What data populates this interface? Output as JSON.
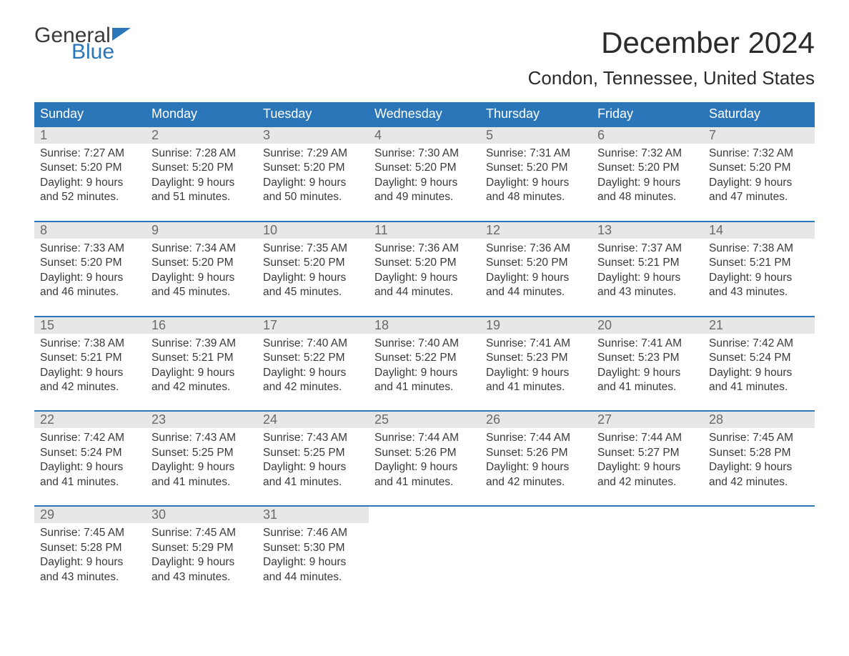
{
  "logo": {
    "word1": "General",
    "word2": "Blue"
  },
  "title": "December 2024",
  "location": "Condon, Tennessee, United States",
  "colors": {
    "brand_blue": "#2a76b9",
    "day_header_bg": "#2a76b9",
    "day_header_text": "#ffffff",
    "daynum_bg": "#e7e7e7",
    "daynum_text": "#6a6a6a",
    "body_text": "#3a3a3a",
    "week_rule": "#2a76b9",
    "page_bg": "#ffffff"
  },
  "day_headers": [
    "Sunday",
    "Monday",
    "Tuesday",
    "Wednesday",
    "Thursday",
    "Friday",
    "Saturday"
  ],
  "weeks": [
    [
      {
        "n": "1",
        "sunrise": "Sunrise: 7:27 AM",
        "sunset": "Sunset: 5:20 PM",
        "dl1": "Daylight: 9 hours",
        "dl2": "and 52 minutes."
      },
      {
        "n": "2",
        "sunrise": "Sunrise: 7:28 AM",
        "sunset": "Sunset: 5:20 PM",
        "dl1": "Daylight: 9 hours",
        "dl2": "and 51 minutes."
      },
      {
        "n": "3",
        "sunrise": "Sunrise: 7:29 AM",
        "sunset": "Sunset: 5:20 PM",
        "dl1": "Daylight: 9 hours",
        "dl2": "and 50 minutes."
      },
      {
        "n": "4",
        "sunrise": "Sunrise: 7:30 AM",
        "sunset": "Sunset: 5:20 PM",
        "dl1": "Daylight: 9 hours",
        "dl2": "and 49 minutes."
      },
      {
        "n": "5",
        "sunrise": "Sunrise: 7:31 AM",
        "sunset": "Sunset: 5:20 PM",
        "dl1": "Daylight: 9 hours",
        "dl2": "and 48 minutes."
      },
      {
        "n": "6",
        "sunrise": "Sunrise: 7:32 AM",
        "sunset": "Sunset: 5:20 PM",
        "dl1": "Daylight: 9 hours",
        "dl2": "and 48 minutes."
      },
      {
        "n": "7",
        "sunrise": "Sunrise: 7:32 AM",
        "sunset": "Sunset: 5:20 PM",
        "dl1": "Daylight: 9 hours",
        "dl2": "and 47 minutes."
      }
    ],
    [
      {
        "n": "8",
        "sunrise": "Sunrise: 7:33 AM",
        "sunset": "Sunset: 5:20 PM",
        "dl1": "Daylight: 9 hours",
        "dl2": "and 46 minutes."
      },
      {
        "n": "9",
        "sunrise": "Sunrise: 7:34 AM",
        "sunset": "Sunset: 5:20 PM",
        "dl1": "Daylight: 9 hours",
        "dl2": "and 45 minutes."
      },
      {
        "n": "10",
        "sunrise": "Sunrise: 7:35 AM",
        "sunset": "Sunset: 5:20 PM",
        "dl1": "Daylight: 9 hours",
        "dl2": "and 45 minutes."
      },
      {
        "n": "11",
        "sunrise": "Sunrise: 7:36 AM",
        "sunset": "Sunset: 5:20 PM",
        "dl1": "Daylight: 9 hours",
        "dl2": "and 44 minutes."
      },
      {
        "n": "12",
        "sunrise": "Sunrise: 7:36 AM",
        "sunset": "Sunset: 5:20 PM",
        "dl1": "Daylight: 9 hours",
        "dl2": "and 44 minutes."
      },
      {
        "n": "13",
        "sunrise": "Sunrise: 7:37 AM",
        "sunset": "Sunset: 5:21 PM",
        "dl1": "Daylight: 9 hours",
        "dl2": "and 43 minutes."
      },
      {
        "n": "14",
        "sunrise": "Sunrise: 7:38 AM",
        "sunset": "Sunset: 5:21 PM",
        "dl1": "Daylight: 9 hours",
        "dl2": "and 43 minutes."
      }
    ],
    [
      {
        "n": "15",
        "sunrise": "Sunrise: 7:38 AM",
        "sunset": "Sunset: 5:21 PM",
        "dl1": "Daylight: 9 hours",
        "dl2": "and 42 minutes."
      },
      {
        "n": "16",
        "sunrise": "Sunrise: 7:39 AM",
        "sunset": "Sunset: 5:21 PM",
        "dl1": "Daylight: 9 hours",
        "dl2": "and 42 minutes."
      },
      {
        "n": "17",
        "sunrise": "Sunrise: 7:40 AM",
        "sunset": "Sunset: 5:22 PM",
        "dl1": "Daylight: 9 hours",
        "dl2": "and 42 minutes."
      },
      {
        "n": "18",
        "sunrise": "Sunrise: 7:40 AM",
        "sunset": "Sunset: 5:22 PM",
        "dl1": "Daylight: 9 hours",
        "dl2": "and 41 minutes."
      },
      {
        "n": "19",
        "sunrise": "Sunrise: 7:41 AM",
        "sunset": "Sunset: 5:23 PM",
        "dl1": "Daylight: 9 hours",
        "dl2": "and 41 minutes."
      },
      {
        "n": "20",
        "sunrise": "Sunrise: 7:41 AM",
        "sunset": "Sunset: 5:23 PM",
        "dl1": "Daylight: 9 hours",
        "dl2": "and 41 minutes."
      },
      {
        "n": "21",
        "sunrise": "Sunrise: 7:42 AM",
        "sunset": "Sunset: 5:24 PM",
        "dl1": "Daylight: 9 hours",
        "dl2": "and 41 minutes."
      }
    ],
    [
      {
        "n": "22",
        "sunrise": "Sunrise: 7:42 AM",
        "sunset": "Sunset: 5:24 PM",
        "dl1": "Daylight: 9 hours",
        "dl2": "and 41 minutes."
      },
      {
        "n": "23",
        "sunrise": "Sunrise: 7:43 AM",
        "sunset": "Sunset: 5:25 PM",
        "dl1": "Daylight: 9 hours",
        "dl2": "and 41 minutes."
      },
      {
        "n": "24",
        "sunrise": "Sunrise: 7:43 AM",
        "sunset": "Sunset: 5:25 PM",
        "dl1": "Daylight: 9 hours",
        "dl2": "and 41 minutes."
      },
      {
        "n": "25",
        "sunrise": "Sunrise: 7:44 AM",
        "sunset": "Sunset: 5:26 PM",
        "dl1": "Daylight: 9 hours",
        "dl2": "and 41 minutes."
      },
      {
        "n": "26",
        "sunrise": "Sunrise: 7:44 AM",
        "sunset": "Sunset: 5:26 PM",
        "dl1": "Daylight: 9 hours",
        "dl2": "and 42 minutes."
      },
      {
        "n": "27",
        "sunrise": "Sunrise: 7:44 AM",
        "sunset": "Sunset: 5:27 PM",
        "dl1": "Daylight: 9 hours",
        "dl2": "and 42 minutes."
      },
      {
        "n": "28",
        "sunrise": "Sunrise: 7:45 AM",
        "sunset": "Sunset: 5:28 PM",
        "dl1": "Daylight: 9 hours",
        "dl2": "and 42 minutes."
      }
    ],
    [
      {
        "n": "29",
        "sunrise": "Sunrise: 7:45 AM",
        "sunset": "Sunset: 5:28 PM",
        "dl1": "Daylight: 9 hours",
        "dl2": "and 43 minutes."
      },
      {
        "n": "30",
        "sunrise": "Sunrise: 7:45 AM",
        "sunset": "Sunset: 5:29 PM",
        "dl1": "Daylight: 9 hours",
        "dl2": "and 43 minutes."
      },
      {
        "n": "31",
        "sunrise": "Sunrise: 7:46 AM",
        "sunset": "Sunset: 5:30 PM",
        "dl1": "Daylight: 9 hours",
        "dl2": "and 44 minutes."
      },
      {
        "empty": true
      },
      {
        "empty": true
      },
      {
        "empty": true
      },
      {
        "empty": true
      }
    ]
  ]
}
